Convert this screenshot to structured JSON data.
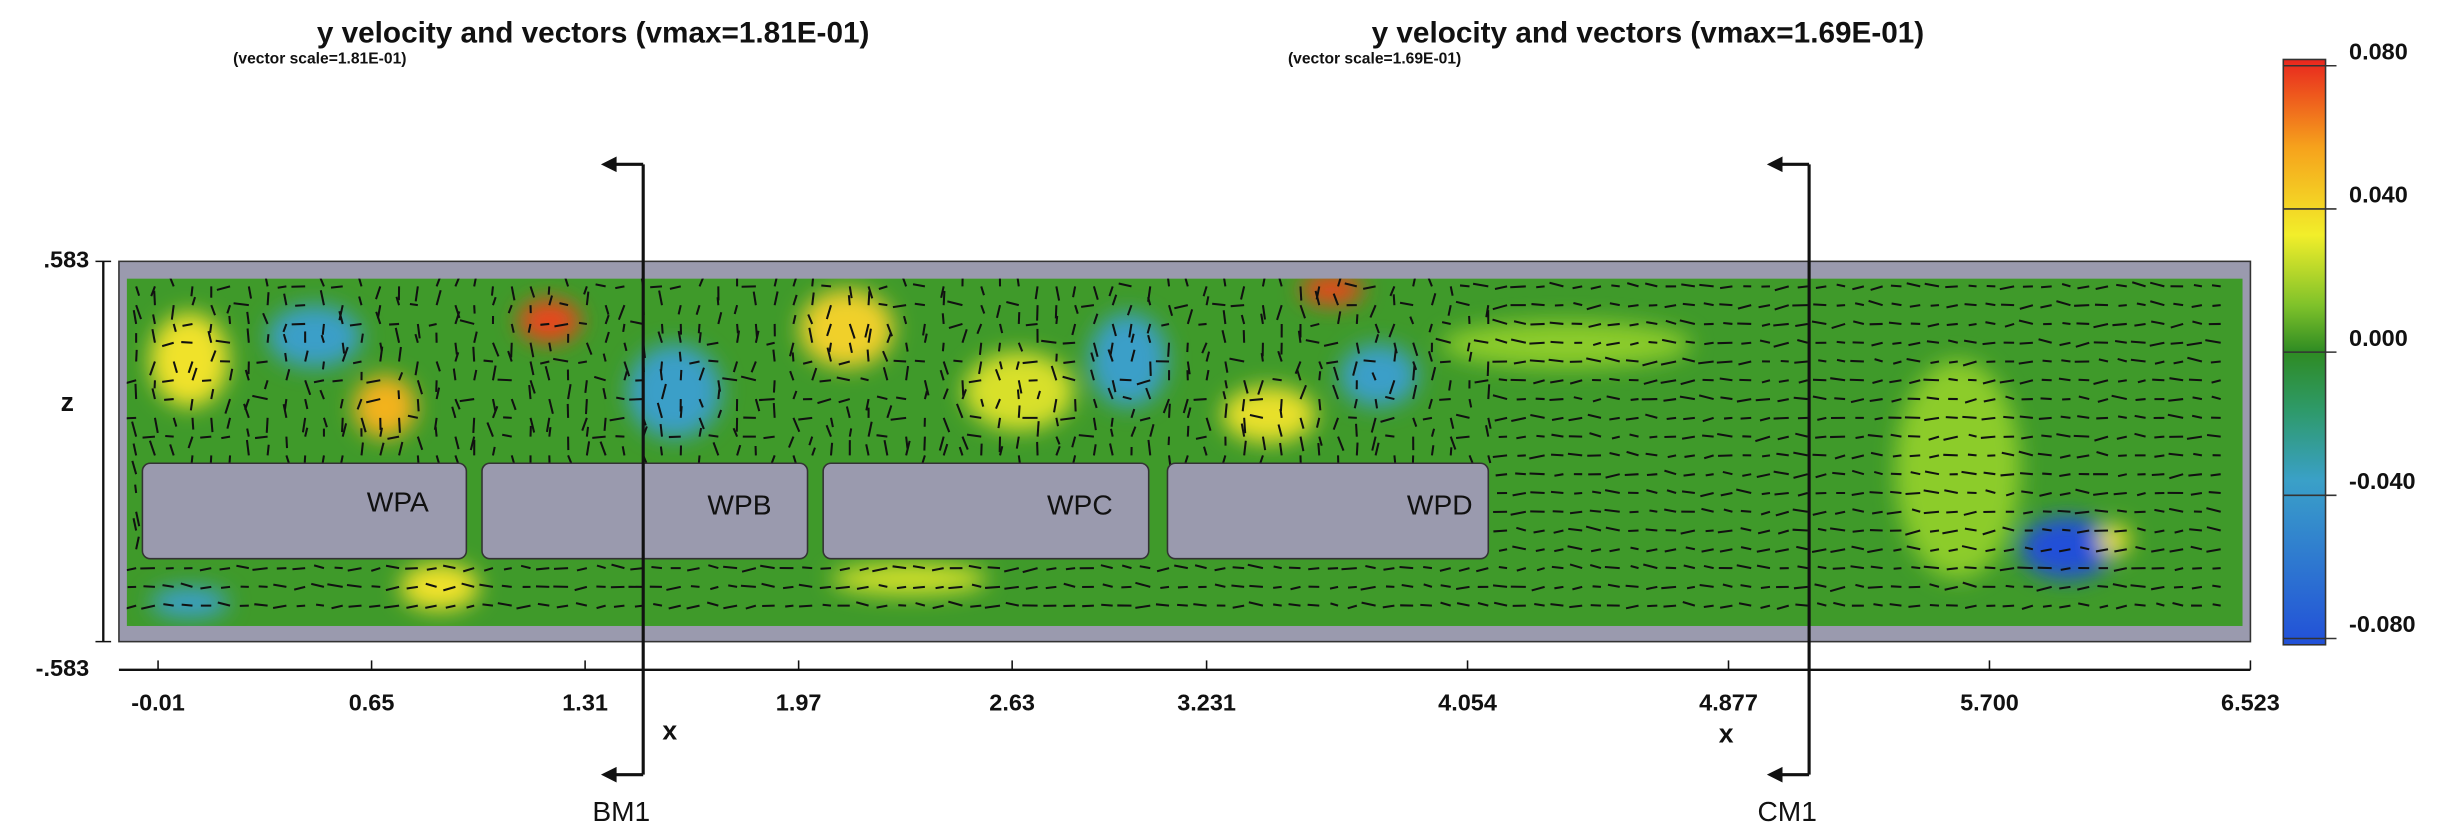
{
  "chart_data": [
    {
      "type": "contour",
      "title": "y velocity and vectors  (vmax=1.81E-01)",
      "subtitle": "(vector scale=1.81E-01)",
      "x_label": "x",
      "xlim": [
        -0.01,
        3.231
      ],
      "xticks": [
        {
          "value": -0.01,
          "label": "-0.01"
        },
        {
          "value": 0.65,
          "label": "0.65"
        },
        1.31,
        1.97,
        2.63
      ],
      "y_label": "z",
      "ylim": [
        -0.583,
        0.583
      ],
      "yticks": [
        {
          "value": -0.583,
          "label": "-.583"
        },
        {
          "value": 0.583,
          "label": ".583"
        }
      ]
    },
    {
      "type": "contour",
      "title": "y velocity and vectors  (vmax=1.69E-01)",
      "subtitle": "(vector scale=1.69E-01)",
      "x_label": "x",
      "xlim": [
        3.231,
        6.523
      ],
      "xticks": [
        3.231,
        4.054,
        4.877,
        {
          "value": 5.7,
          "label": "5.700"
        },
        6.523
      ],
      "colorbar": {
        "lim": [
          -0.08,
          0.08
        ],
        "ticks": [
          {
            "value": 0.08,
            "label": "0.080"
          },
          {
            "value": 0.04,
            "label": "0.040"
          },
          {
            "value": 0,
            "label": "0.000"
          },
          {
            "value": -0.04,
            "label": "-0.040"
          },
          {
            "value": -0.08,
            "label": "-0.080"
          }
        ]
      }
    }
  ],
  "annotations": {
    "blocks": [
      "WPA",
      "WPB",
      "WPC",
      "WPD"
    ],
    "sections": [
      "BM1",
      "CM1"
    ]
  }
}
